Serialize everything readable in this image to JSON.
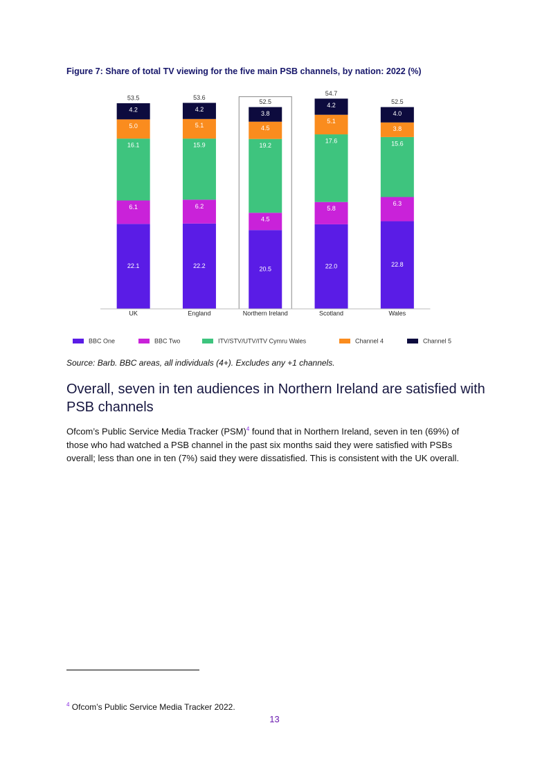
{
  "figure_title": "Figure 7: Share of total TV viewing for the five main PSB channels, by nation: 2022 (%)",
  "chart_data": {
    "type": "stacked_bar",
    "categories": [
      "UK",
      "England",
      "Northern Ireland",
      "Scotland",
      "Wales"
    ],
    "series": [
      {
        "name": "BBC One",
        "color": "#5a1ce6",
        "values": [
          22.1,
          22.2,
          20.5,
          22.0,
          22.8
        ],
        "value_labels": [
          "22.1",
          "22.2",
          "20.5",
          "22.0",
          "22.8"
        ]
      },
      {
        "name": "BBC Two",
        "color": "#c922d9",
        "values": [
          6.1,
          6.2,
          4.5,
          5.8,
          6.3
        ],
        "value_labels": [
          "6.1",
          "6.2",
          "4.5",
          "5.8",
          "6.3"
        ]
      },
      {
        "name": "ITV/STV/UTV/ITV Cymru Wales",
        "color": "#3ec47e",
        "values": [
          16.1,
          15.9,
          19.2,
          17.6,
          15.6
        ],
        "value_labels": [
          "16.1",
          "15.9",
          "19.2",
          "17.6",
          "15.6"
        ]
      },
      {
        "name": "Channel 4",
        "color": "#fa8c1e",
        "values": [
          5.0,
          5.1,
          4.5,
          5.1,
          3.8
        ],
        "value_labels": [
          "5.0",
          "5.1",
          "4.5",
          "5.1",
          "3.8"
        ]
      },
      {
        "name": "Channel 5",
        "color": "#0d0b3e",
        "values": [
          4.2,
          4.2,
          3.8,
          4.2,
          4.0
        ],
        "value_labels": [
          "4.2",
          "4.2",
          "3.8",
          "4.2",
          "4.0"
        ]
      }
    ],
    "totals": [
      53.5,
      53.6,
      52.5,
      54.7,
      52.5
    ],
    "legend": "bottom"
  },
  "source": "Source: Barb. BBC areas, all individuals (4+). Excludes any +1 channels.",
  "heading": "Overall, seven in ten audiences in Northern Ireland are satisfied with PSB channels",
  "paragraph": {
    "text_before": "Ofcom’s Public Service Media Tracker (PSM)",
    "footnote_ref": "4",
    "text_after": " found that in Northern Ireland, seven in ten (69%) of those who had watched a PSB channel in the past six months said they were satisfied with PSBs overall; less than one in ten (7%) said they were dissatisfied. This is consistent with the UK overall."
  },
  "footnote": {
    "marker": "4",
    "text": " Ofcom’s Public Service Media Tracker 2022."
  },
  "page_number": "13"
}
